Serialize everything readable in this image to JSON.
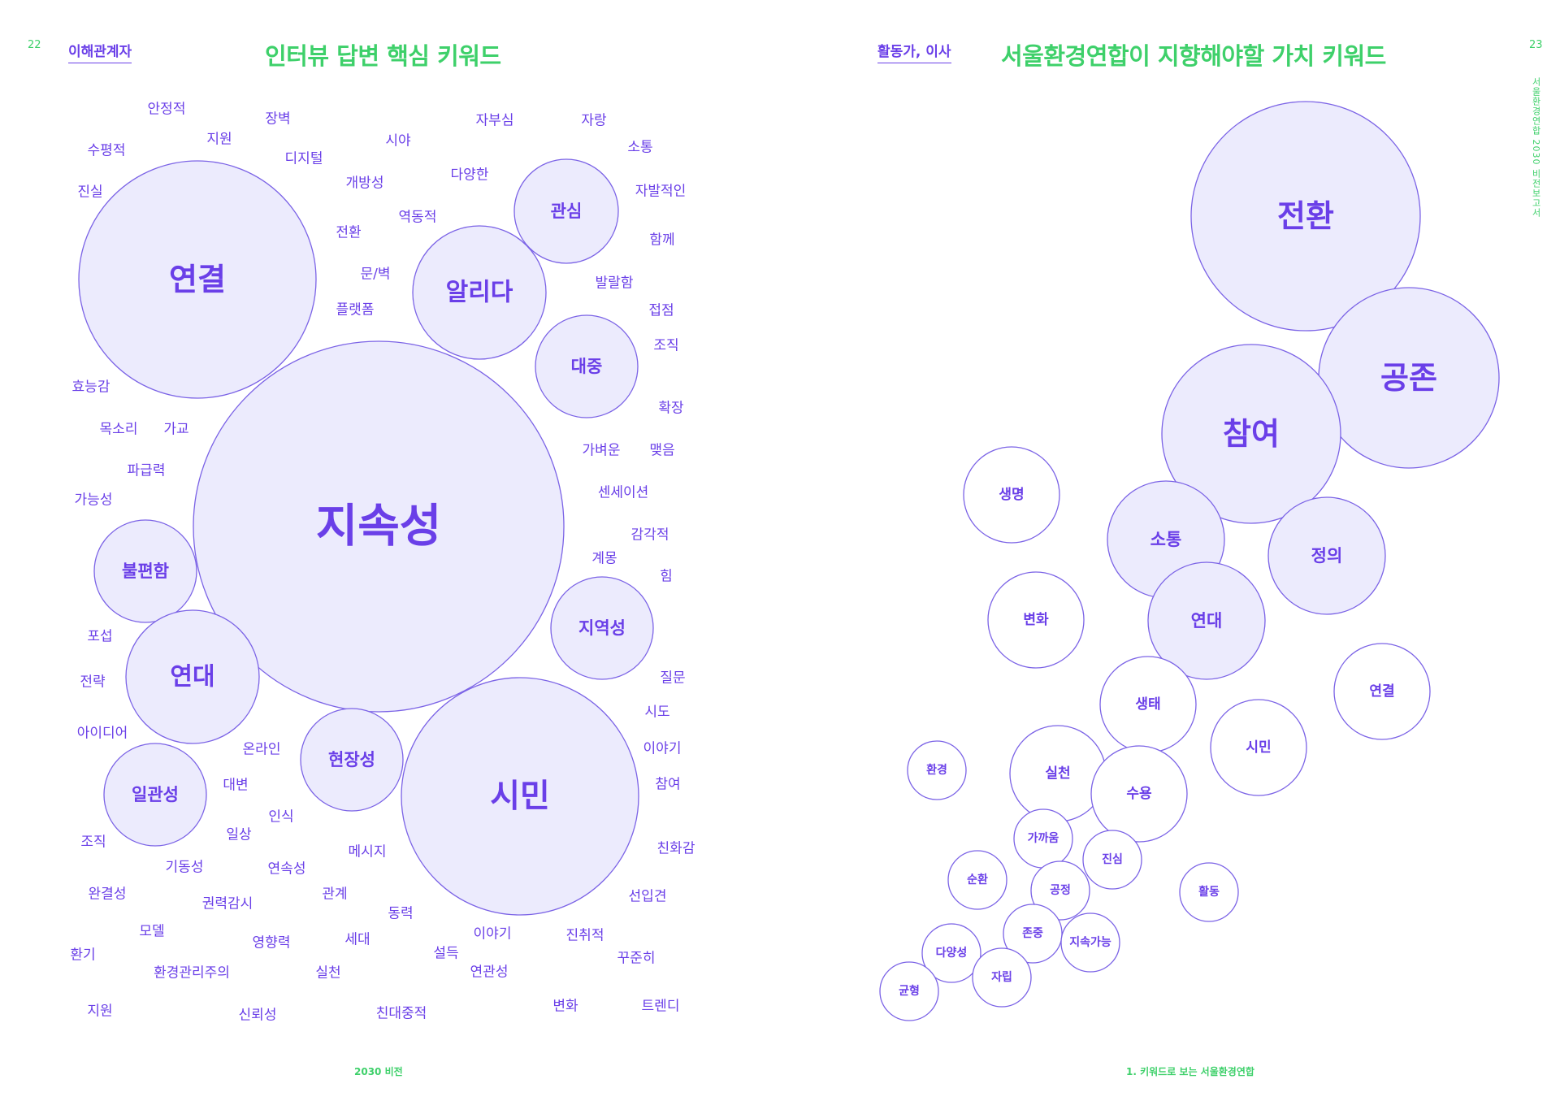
{
  "left_page": {
    "page_number": "22",
    "section_label": "이해관계자",
    "title": "인터뷰 답변 핵심 키워드",
    "footer": "2030 비전",
    "bubbles": [
      {
        "label": "지속성"
      },
      {
        "label": "연결"
      },
      {
        "label": "시민"
      },
      {
        "label": "알리다"
      },
      {
        "label": "관심"
      },
      {
        "label": "대중"
      },
      {
        "label": "불편함"
      },
      {
        "label": "연대"
      },
      {
        "label": "일관성"
      },
      {
        "label": "현장성"
      },
      {
        "label": "지역성"
      }
    ],
    "words": [
      "안정적",
      "지원",
      "장벽",
      "자부심",
      "자랑",
      "수평적",
      "시야",
      "디지털",
      "소통",
      "진실",
      "개방성",
      "다양한",
      "자발적인",
      "역동적",
      "전환",
      "함께",
      "문/벽",
      "발랄함",
      "플랫폼",
      "접점",
      "조직",
      "효능감",
      "확장",
      "목소리",
      "가교",
      "가벼운",
      "맺음",
      "파급력",
      "센세이션",
      "가능성",
      "감각적",
      "계몽",
      "힘",
      "포섭",
      "전략",
      "질문",
      "시도",
      "아이디어",
      "온라인",
      "이야기",
      "대변",
      "참여",
      "인식",
      "일상",
      "조직",
      "메시지",
      "친화감",
      "기동성",
      "연속성",
      "완결성",
      "관계",
      "선입견",
      "권력감시",
      "동력",
      "모델",
      "세대",
      "영향력",
      "이야기",
      "진취적",
      "환기",
      "설득",
      "꾸준히",
      "환경관리주의",
      "실천",
      "연관성",
      "지원",
      "신뢰성",
      "친대중적",
      "변화",
      "트렌디"
    ]
  },
  "right_page": {
    "page_number": "23",
    "section_label": "활동가, 이사",
    "title": "서울환경연합이 지향해야할 가치 키워드",
    "vertical_text": "서울환경연합 2030 비전보고서",
    "footer": "1. 키워드로 보는 서울환경연합",
    "bubbles": [
      {
        "label": "전환",
        "filled": true
      },
      {
        "label": "공존",
        "filled": true
      },
      {
        "label": "참여",
        "filled": true
      },
      {
        "label": "소통",
        "filled": true
      },
      {
        "label": "정의",
        "filled": true
      },
      {
        "label": "연대",
        "filled": true
      },
      {
        "label": "생명",
        "filled": false
      },
      {
        "label": "변화",
        "filled": false
      },
      {
        "label": "생태",
        "filled": false
      },
      {
        "label": "연결",
        "filled": false
      },
      {
        "label": "시민",
        "filled": false
      },
      {
        "label": "환경",
        "filled": false
      },
      {
        "label": "실천",
        "filled": false
      },
      {
        "label": "수용",
        "filled": false
      },
      {
        "label": "가까움",
        "filled": false
      },
      {
        "label": "진심",
        "filled": false
      },
      {
        "label": "순환",
        "filled": false
      },
      {
        "label": "공정",
        "filled": false
      },
      {
        "label": "활동",
        "filled": false
      },
      {
        "label": "존중",
        "filled": false
      },
      {
        "label": "지속가능",
        "filled": false
      },
      {
        "label": "다양성",
        "filled": false
      },
      {
        "label": "자립",
        "filled": false
      },
      {
        "label": "균형",
        "filled": false
      }
    ]
  },
  "colors": {
    "accent_green": "#3ed06a",
    "purple": "#6a3fe8",
    "bubble_fill": "#ecebfd",
    "bubble_stroke": "#7b63e6"
  }
}
